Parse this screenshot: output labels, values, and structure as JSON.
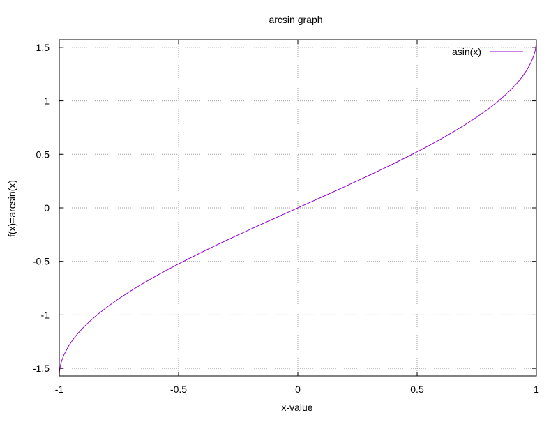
{
  "chart_data": {
    "type": "line",
    "title": "arcsin graph",
    "xlabel": "x-value",
    "ylabel": "f(x)=arcsin(x)",
    "xlim": [
      -1,
      1
    ],
    "ylim": [
      -1.5708,
      1.5708
    ],
    "xticks": [
      -1,
      -0.5,
      0,
      0.5,
      1
    ],
    "xtick_labels": [
      "-1",
      "-0.5",
      "0",
      "0.5",
      "1"
    ],
    "yticks": [
      -1.5,
      -1,
      -0.5,
      0,
      0.5,
      1,
      1.5
    ],
    "ytick_labels": [
      "-1.5",
      "-1",
      "-0.5",
      "0",
      "0.5",
      "1",
      "1.5"
    ],
    "grid": true,
    "legend_position": "top-right",
    "series": [
      {
        "name": "asin(x)",
        "color": "#9400d3",
        "x": [
          -1,
          -0.999,
          -0.995,
          -0.99,
          -0.98,
          -0.96,
          -0.94,
          -0.92,
          -0.9,
          -0.87,
          -0.84,
          -0.8,
          -0.75,
          -0.7,
          -0.65,
          -0.6,
          -0.55,
          -0.5,
          -0.45,
          -0.4,
          -0.35,
          -0.3,
          -0.25,
          -0.2,
          -0.15,
          -0.1,
          -0.05,
          0,
          0.05,
          0.1,
          0.15,
          0.2,
          0.25,
          0.3,
          0.35,
          0.4,
          0.45,
          0.5,
          0.55,
          0.6,
          0.65,
          0.7,
          0.75,
          0.8,
          0.84,
          0.87,
          0.9,
          0.92,
          0.94,
          0.96,
          0.98,
          0.99,
          0.995,
          0.999,
          1
        ],
        "y": [
          -1.5708,
          -1.5261,
          -1.4708,
          -1.4293,
          -1.3705,
          -1.287,
          -1.2226,
          -1.1681,
          -1.1198,
          -1.0552,
          -0.9973,
          -0.9273,
          -0.8481,
          -0.7754,
          -0.7076,
          -0.6435,
          -0.5824,
          -0.5236,
          -0.4668,
          -0.4115,
          -0.3576,
          -0.3047,
          -0.2527,
          -0.2014,
          -0.1506,
          -0.1002,
          -0.05,
          0,
          0.05,
          0.1002,
          0.1506,
          0.2014,
          0.2527,
          0.3047,
          0.3576,
          0.4115,
          0.4668,
          0.5236,
          0.5824,
          0.6435,
          0.7076,
          0.7754,
          0.8481,
          0.9273,
          0.9973,
          1.0552,
          1.1198,
          1.1681,
          1.2226,
          1.287,
          1.3705,
          1.4293,
          1.4708,
          1.5261,
          1.5708
        ]
      }
    ]
  }
}
